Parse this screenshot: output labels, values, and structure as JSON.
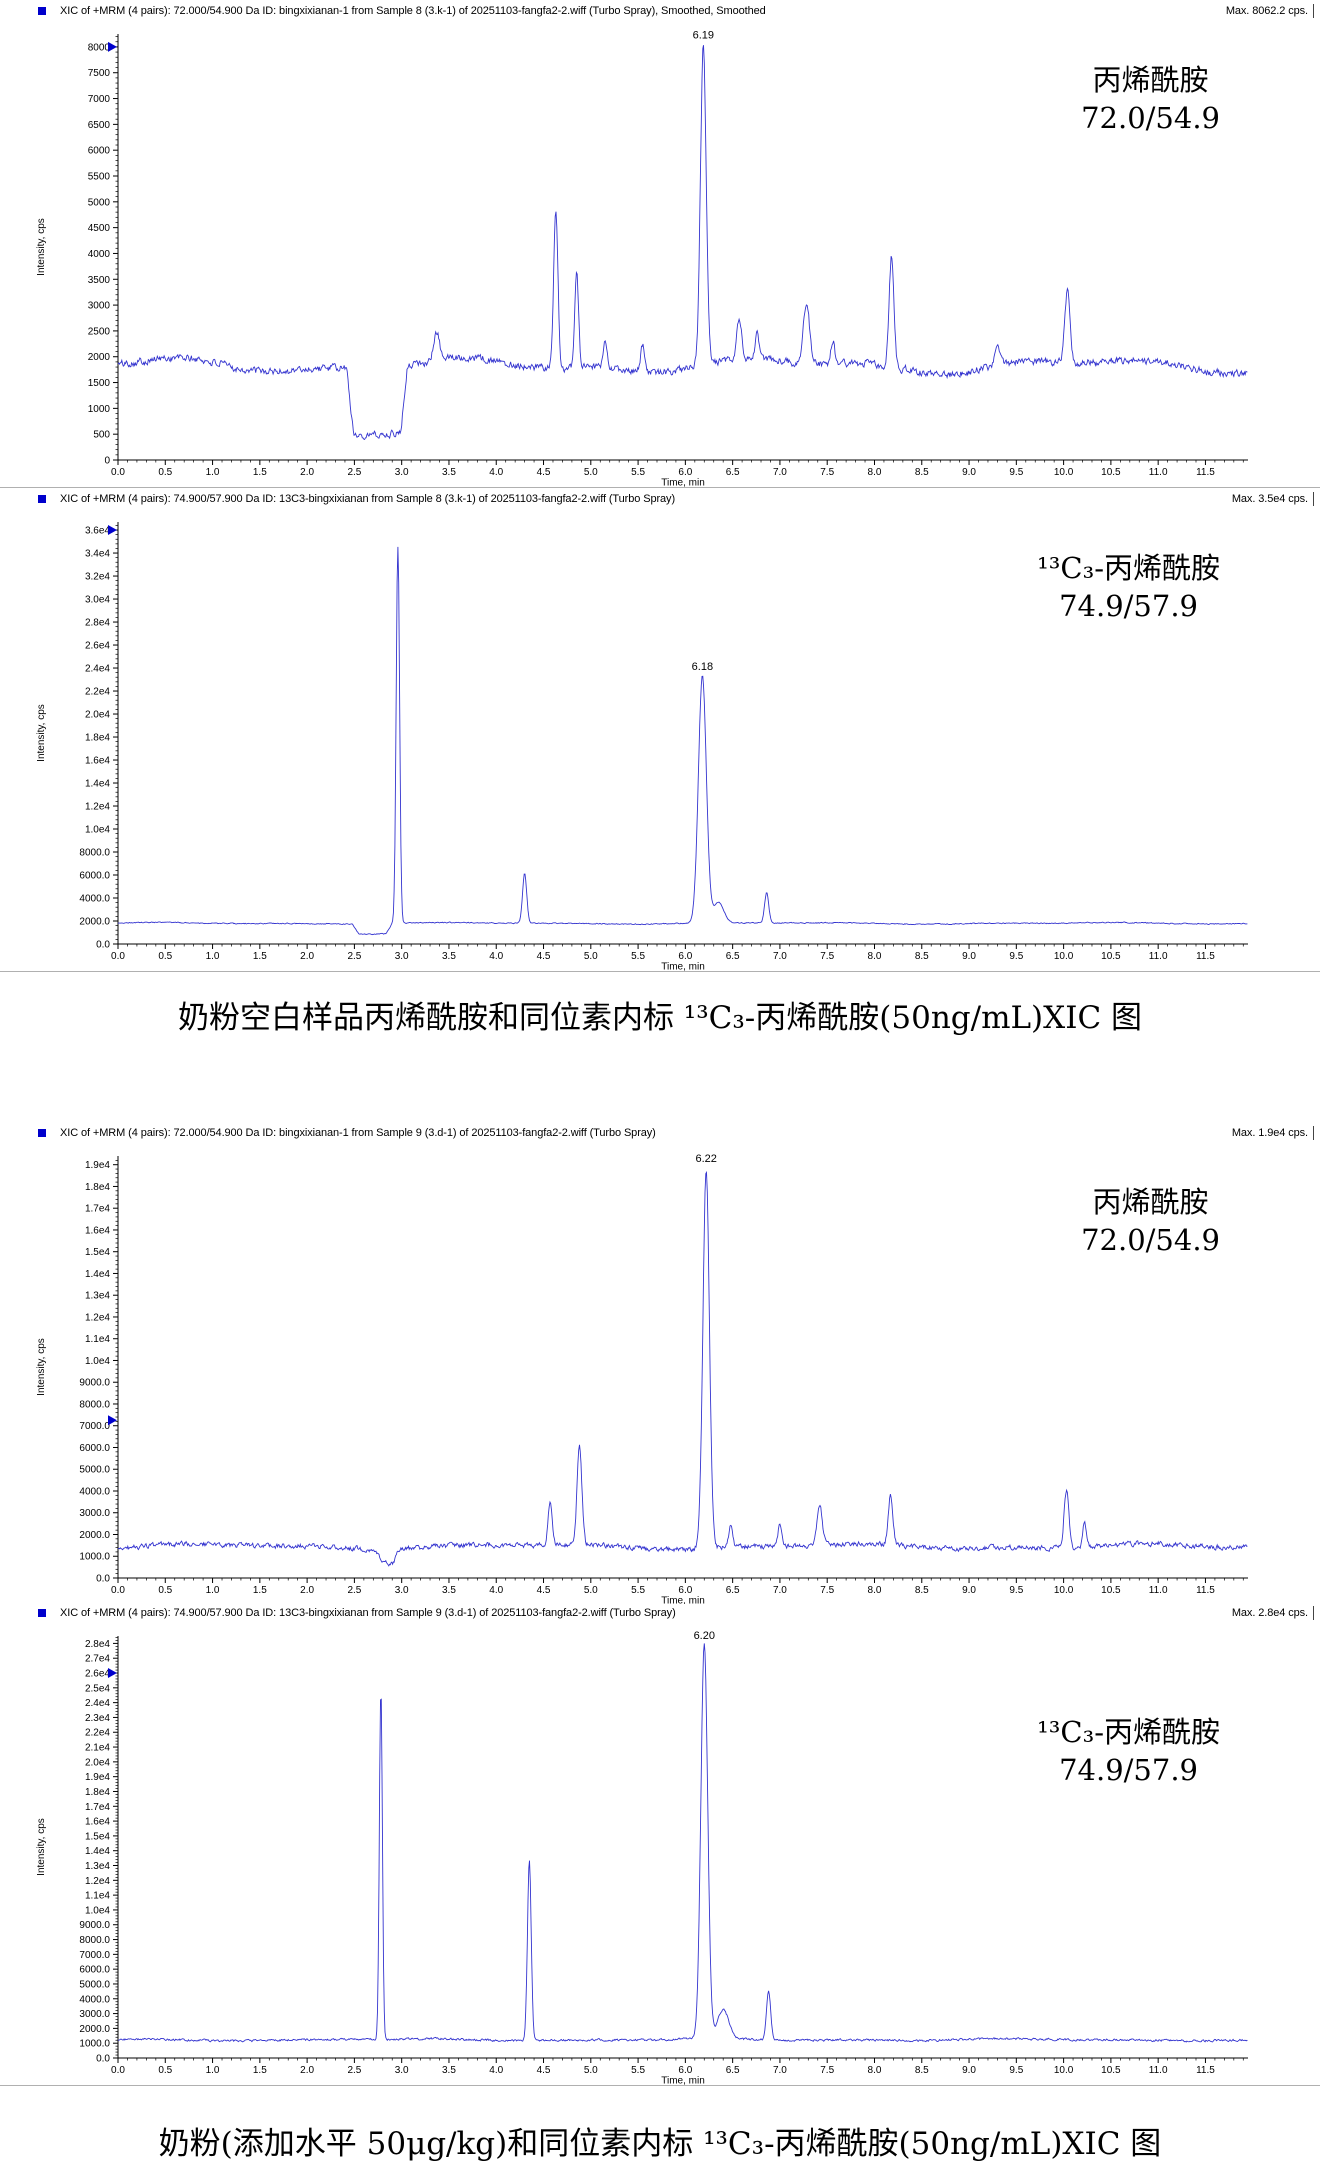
{
  "style": {
    "trace_color": "#3434cf",
    "axis_color": "#000000",
    "marker_color": "#0000cc",
    "header_square_color": "#0000cc",
    "separator_color": "#b0b0b0"
  },
  "captions": [
    {
      "text": "奶粉空白样品丙烯酰胺和同位素内标 ¹³C₃-丙烯酰胺(50ng/mL)XIC 图"
    },
    {
      "text": "奶粉(添加水平 50μg/kg)和同位素内标 ¹³C₃-丙烯酰胺(50ng/mL)XIC 图"
    }
  ],
  "chart_data": [
    {
      "type": "line",
      "title": "XIC of +MRM (4 pairs): 72.000/54.900 Da ID: bingxixianan-1 from Sample 8 (3.k-1) of 20251103-fangfa2-2.wiff (Turbo Spray), Smoothed, Smoothed",
      "max_label": "Max. 8062.2 cps.",
      "xlabel": "Time, min",
      "ylabel": "Intensity, cps",
      "xlim": [
        0.0,
        11.95
      ],
      "ylim": [
        0,
        8250
      ],
      "xtick_major_step": 0.5,
      "xtick_minor_step": 0.1,
      "xtick_labels": [
        "0.0",
        "0.5",
        "1.0",
        "1.5",
        "2.0",
        "2.5",
        "3.0",
        "3.5",
        "4.0",
        "4.5",
        "5.0",
        "5.5",
        "6.0",
        "6.5",
        "7.0",
        "7.5",
        "8.0",
        "8.5",
        "9.0",
        "9.5",
        "10.0",
        "10.5",
        "11.0",
        "11.5"
      ],
      "ytick_step": 500,
      "ytick_labels": [
        "0",
        "500",
        "1000",
        "1500",
        "2000",
        "2500",
        "3000",
        "3500",
        "4000",
        "4500",
        "5000",
        "5500",
        "6000",
        "6500",
        "7000",
        "7500",
        "8000"
      ],
      "marker_value": 8000,
      "peak_label": {
        "text": "6.19",
        "x": 6.19
      },
      "annotation": {
        "line1": "丙烯酰胺",
        "line2": "72.0/54.9"
      },
      "baseline": {
        "level": 1830,
        "noise": 120,
        "wander": 110
      },
      "dips": [
        {
          "from": 2.42,
          "to": 3.06,
          "level": 560
        }
      ],
      "peaks": [
        [
          3.37,
          2350,
          0.03
        ],
        [
          4.63,
          4890,
          0.022
        ],
        [
          4.85,
          3720,
          0.02
        ],
        [
          5.15,
          2400,
          0.02
        ],
        [
          5.55,
          2350,
          0.022
        ],
        [
          6.19,
          8050,
          0.03
        ],
        [
          6.57,
          2620,
          0.025
        ],
        [
          6.76,
          2380,
          0.02
        ],
        [
          7.28,
          3010,
          0.033
        ],
        [
          7.56,
          2280,
          0.02
        ],
        [
          8.18,
          3990,
          0.025
        ],
        [
          9.3,
          2150,
          0.03
        ],
        [
          10.04,
          3230,
          0.027
        ]
      ],
      "seed": 101
    },
    {
      "type": "line",
      "title": "XIC of +MRM (4 pairs): 74.900/57.900 Da ID: 13C3-bingxixianan from Sample 8 (3.k-1) of 20251103-fangfa2-2.wiff (Turbo Spray)",
      "max_label": "Max. 3.5e4 cps.",
      "xlabel": "Time, min",
      "ylabel": "Intensity, cps",
      "xlim": [
        0.0,
        11.95
      ],
      "ylim": [
        0,
        36700
      ],
      "xtick_major_step": 0.5,
      "xtick_minor_step": 0.1,
      "xtick_labels": [
        "0.0",
        "0.5",
        "1.0",
        "1.5",
        "2.0",
        "2.5",
        "3.0",
        "3.5",
        "4.0",
        "4.5",
        "5.0",
        "5.5",
        "6.0",
        "6.5",
        "7.0",
        "7.5",
        "8.0",
        "8.5",
        "9.0",
        "9.5",
        "10.0",
        "10.5",
        "11.0",
        "11.5"
      ],
      "ytick_step": 2000,
      "ytick_labels": [
        "0.0",
        "2000.0",
        "4000.0",
        "6000.0",
        "8000.0",
        "1.0e4",
        "1.2e4",
        "1.4e4",
        "1.6e4",
        "1.8e4",
        "2.0e4",
        "2.2e4",
        "2.4e4",
        "2.6e4",
        "2.8e4",
        "3.0e4",
        "3.2e4",
        "3.4e4",
        "3.6e4"
      ],
      "marker_value": 36000,
      "peak_label": {
        "text": "6.18",
        "x": 6.18
      },
      "annotation": {
        "line1": "¹³C₃-丙烯酰胺",
        "line2": "74.9/57.9"
      },
      "baseline": {
        "level": 1800,
        "noise": 70,
        "wander": 50
      },
      "dips": [
        {
          "from": 2.48,
          "to": 2.9,
          "level": 900
        }
      ],
      "peaks": [
        [
          2.96,
          34500,
          0.018
        ],
        [
          4.3,
          6100,
          0.022
        ],
        [
          6.18,
          23300,
          0.042
        ],
        [
          6.35,
          3600,
          0.055
        ],
        [
          6.86,
          4420,
          0.022
        ]
      ],
      "seed": 202
    },
    {
      "type": "line",
      "title": "XIC of +MRM (4 pairs): 72.000/54.900 Da ID: bingxixianan-1 from Sample 9 (3.d-1) of 20251103-fangfa2-2.wiff (Turbo Spray)",
      "max_label": "Max. 1.9e4 cps.",
      "xlabel": "Time, min",
      "ylabel": "Intensity, cps",
      "xlim": [
        0.0,
        11.95
      ],
      "ylim": [
        0,
        19400
      ],
      "xtick_major_step": 0.5,
      "xtick_minor_step": 0.1,
      "xtick_labels": [
        "0.0",
        "0.5",
        "1.0",
        "1.5",
        "2.0",
        "2.5",
        "3.0",
        "3.5",
        "4.0",
        "4.5",
        "5.0",
        "5.5",
        "6.0",
        "6.5",
        "7.0",
        "7.5",
        "8.0",
        "8.5",
        "9.0",
        "9.5",
        "10.0",
        "10.5",
        "11.0",
        "11.5"
      ],
      "ytick_step": 1000,
      "ytick_labels": [
        "0.0",
        "1000.0",
        "2000.0",
        "3000.0",
        "4000.0",
        "5000.0",
        "6000.0",
        "7000.0",
        "8000.0",
        "9000.0",
        "1.0e4",
        "1.1e4",
        "1.2e4",
        "1.3e4",
        "1.4e4",
        "1.5e4",
        "1.6e4",
        "1.7e4",
        "1.8e4",
        "1.9e4"
      ],
      "marker_value": 7250,
      "peak_label": {
        "text": "6.22",
        "x": 6.22
      },
      "annotation": {
        "line1": "丙烯酰胺",
        "line2": "72.0/54.9"
      },
      "baseline": {
        "level": 1450,
        "noise": 190,
        "wander": 90
      },
      "dips": [
        {
          "from": 2.72,
          "to": 2.98,
          "level": 800
        }
      ],
      "peaks": [
        [
          4.57,
          3450,
          0.022
        ],
        [
          4.88,
          6080,
          0.025
        ],
        [
          6.22,
          18850,
          0.034
        ],
        [
          6.48,
          2500,
          0.02
        ],
        [
          7.0,
          2450,
          0.02
        ],
        [
          7.42,
          3280,
          0.028
        ],
        [
          8.17,
          3700,
          0.024
        ],
        [
          10.03,
          4100,
          0.025
        ],
        [
          10.22,
          2600,
          0.018
        ]
      ],
      "seed": 303
    },
    {
      "type": "line",
      "title": "XIC of +MRM (4 pairs): 74.900/57.900 Da ID: 13C3-bingxixianan from Sample 9 (3.d-1) of 20251103-fangfa2-2.wiff (Turbo Spray)",
      "max_label": "Max. 2.8e4 cps.",
      "xlabel": "Time, min",
      "ylabel": "Intensity, cps",
      "xlim": [
        0.0,
        11.95
      ],
      "ylim": [
        0,
        28500
      ],
      "xtick_major_step": 0.5,
      "xtick_minor_step": 0.1,
      "xtick_labels": [
        "0.0",
        "0.5",
        "1.0",
        "1.5",
        "2.0",
        "2.5",
        "3.0",
        "3.5",
        "4.0",
        "4.5",
        "5.0",
        "5.5",
        "6.0",
        "6.5",
        "7.0",
        "7.5",
        "8.0",
        "8.5",
        "9.0",
        "9.5",
        "10.0",
        "10.5",
        "11.0",
        "11.5"
      ],
      "ytick_step": 1000,
      "ytick_labels": [
        "0.0",
        "1000.0",
        "2000.0",
        "3000.0",
        "4000.0",
        "5000.0",
        "6000.0",
        "7000.0",
        "8000.0",
        "9000.0",
        "1.0e4",
        "1.1e4",
        "1.2e4",
        "1.3e4",
        "1.4e4",
        "1.5e4",
        "1.6e4",
        "1.7e4",
        "1.8e4",
        "1.9e4",
        "2.0e4",
        "2.1e4",
        "2.2e4",
        "2.3e4",
        "2.4e4",
        "2.5e4",
        "2.6e4",
        "2.7e4",
        "2.8e4"
      ],
      "marker_value": 26000,
      "peak_label": {
        "text": "6.20",
        "x": 6.2
      },
      "annotation": {
        "line1": "¹³C₃-丙烯酰胺",
        "line2": "74.9/57.9"
      },
      "baseline": {
        "level": 1230,
        "noise": 120,
        "wander": 50
      },
      "dips": [],
      "peaks": [
        [
          2.78,
          24900,
          0.016
        ],
        [
          4.35,
          13400,
          0.02
        ],
        [
          6.2,
          27900,
          0.036
        ],
        [
          6.4,
          3200,
          0.06
        ],
        [
          6.88,
          4500,
          0.022
        ]
      ],
      "seed": 404
    }
  ]
}
